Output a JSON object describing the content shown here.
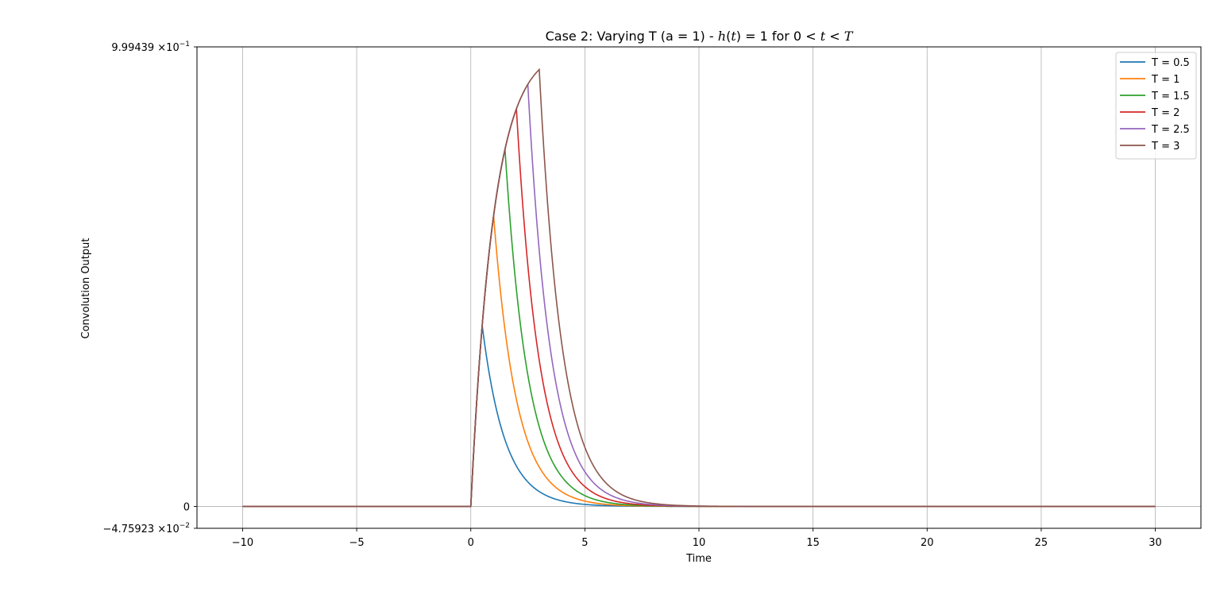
{
  "chart_data": {
    "type": "line",
    "title": {
      "prefix": "Case 2: Varying T (a = 1) - ",
      "h": "h",
      "paren_open": "(",
      "t1": "t",
      "paren_close": ") = 1 for 0 < ",
      "t2": "t",
      "lt": " < ",
      "T": "T"
    },
    "xlabel": "Time",
    "ylabel": "Convolution Output",
    "xlim": [
      -12,
      32
    ],
    "ylim": [
      -0.0475923,
      0.999439
    ],
    "x_ticks": [
      -10,
      -5,
      0,
      5,
      10,
      15,
      20,
      25,
      30
    ],
    "x_tick_labels": [
      "−10",
      "−5",
      "0",
      "5",
      "10",
      "15",
      "20",
      "25",
      "30"
    ],
    "y_ticks": [
      {
        "value": 0.999439,
        "mantissa": "9.99439",
        "exp": "−1"
      },
      {
        "value": 0,
        "plain": "0"
      },
      {
        "value": -0.0475923,
        "mantissa": "−4.75923",
        "exp": "−2"
      }
    ],
    "y_tick_times": "×10",
    "grid": true,
    "x_range": [
      -10,
      30
    ],
    "legend_position": "top-right",
    "model": "y(t) = 1 - exp(-t) for 0 <= t <= T; y(T) * exp(-(t - T)) for t > T; 0 for t < 0",
    "series": [
      {
        "name": "T = 0.5",
        "T": 0.5,
        "color": "#1f77b4"
      },
      {
        "name": "T = 1",
        "T": 1,
        "color": "#ff7f0e"
      },
      {
        "name": "T = 1.5",
        "T": 1.5,
        "color": "#2ca02c"
      },
      {
        "name": "T = 2",
        "T": 2,
        "color": "#d62728"
      },
      {
        "name": "T = 2.5",
        "T": 2.5,
        "color": "#9467bd"
      },
      {
        "name": "T = 3",
        "T": 3,
        "color": "#8c564b"
      }
    ]
  }
}
